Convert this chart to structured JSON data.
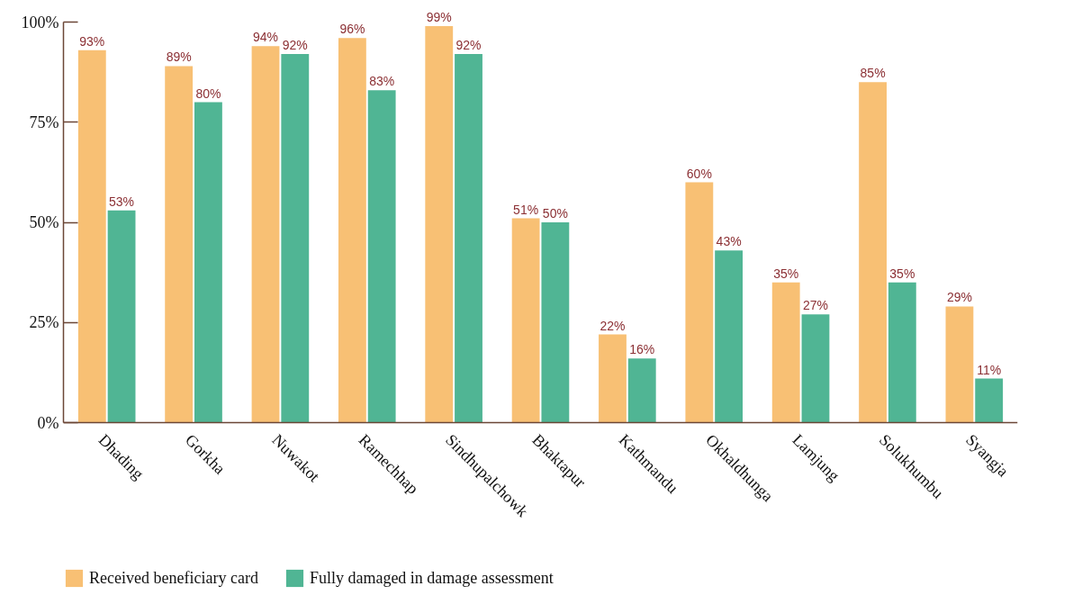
{
  "chart_data": {
    "type": "bar",
    "categories": [
      "Dhading",
      "Gorkha",
      "Nuwakot",
      "Ramechhap",
      "Sindhupalchowk",
      "Bhaktapur",
      "Kathmandu",
      "Okhaldhunga",
      "Lamjung",
      "Solukhumbu",
      "Syangja"
    ],
    "series": [
      {
        "name": "Received beneficiary card",
        "color": "#f8c074",
        "values": [
          93,
          89,
          94,
          96,
          99,
          51,
          22,
          60,
          35,
          85,
          29
        ],
        "value_labels": [
          "93%",
          "89%",
          "94%",
          "96%",
          "99%",
          "51%",
          "22%",
          "60%",
          "35%",
          "85%",
          "29%"
        ]
      },
      {
        "name": "Fully damaged in damage assessment",
        "color": "#50b594",
        "values": [
          53,
          80,
          92,
          83,
          92,
          50,
          16,
          43,
          27,
          35,
          11
        ],
        "value_labels": [
          "53%",
          "80%",
          "92%",
          "83%",
          "92%",
          "50%",
          "16%",
          "43%",
          "27%",
          "35%",
          "11%"
        ]
      }
    ],
    "ylim": [
      0,
      100
    ],
    "yticks": [
      {
        "value": 0,
        "label": "0%"
      },
      {
        "value": 25,
        "label": "25%"
      },
      {
        "value": 50,
        "label": "50%"
      },
      {
        "value": 75,
        "label": "75%"
      },
      {
        "value": 100,
        "label": "100%"
      }
    ],
    "grid": false,
    "legend": "bottom left"
  }
}
